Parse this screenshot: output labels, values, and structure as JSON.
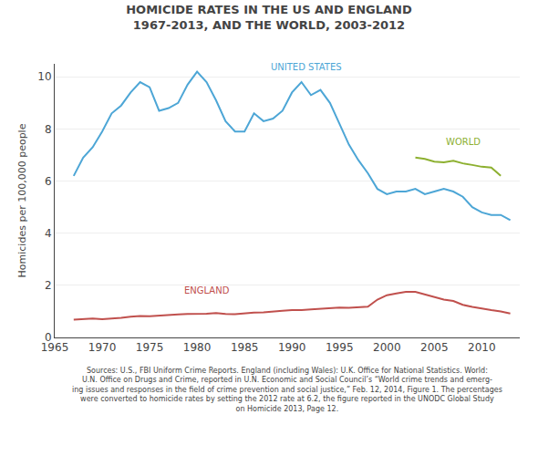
{
  "chart_data": {
    "type": "line",
    "title": "HOMICIDE RATES IN THE US AND ENGLAND",
    "subtitle": "1967-2013, AND THE WORLD, 2003-2012",
    "ylabel": "Homicides per 100,000 people",
    "footnote": "Sources: U.S., FBI Uniform Crime Reports. England (including Wales): U.K. Office for National Statistics. World:\nU.N. Office on Drugs and Crime, reported in U.N. Economic and Social Council’s “World crime trends and emerg-\ning issues and responses in the field of crime prevention and social justice,” Feb. 12, 2014, Figure 1. The percentages\nwere converted to homicide rates by setting the 2012 rate at 6.2, the figure reported in the UNODC Global Study\non Homicide 2013, Page 12.",
    "xlim": [
      1965,
      2014
    ],
    "xticks": [
      1965,
      1970,
      1975,
      1980,
      1985,
      1990,
      1995,
      2000,
      2005,
      2010
    ],
    "ylim": [
      0,
      10.5
    ],
    "yticks": [
      0,
      2,
      4,
      6,
      8,
      10
    ],
    "grid": "y",
    "series": [
      {
        "name": "UNITED STATES",
        "color": "#4da6d6",
        "x": [
          1967,
          1968,
          1969,
          1970,
          1971,
          1972,
          1973,
          1974,
          1975,
          1976,
          1977,
          1978,
          1979,
          1980,
          1981,
          1982,
          1983,
          1984,
          1985,
          1986,
          1987,
          1988,
          1989,
          1990,
          1991,
          1992,
          1993,
          1994,
          1995,
          1996,
          1997,
          1998,
          1999,
          2000,
          2001,
          2002,
          2003,
          2004,
          2005,
          2006,
          2007,
          2008,
          2009,
          2010,
          2011,
          2012,
          2013
        ],
        "values": [
          6.2,
          6.9,
          7.3,
          7.9,
          8.6,
          8.9,
          9.4,
          9.8,
          9.6,
          8.7,
          8.8,
          9.0,
          9.7,
          10.2,
          9.8,
          9.1,
          8.3,
          7.9,
          7.9,
          8.6,
          8.3,
          8.4,
          8.7,
          9.4,
          9.8,
          9.3,
          9.5,
          9.0,
          8.2,
          7.4,
          6.8,
          6.3,
          5.7,
          5.5,
          5.6,
          5.6,
          5.7,
          5.5,
          5.6,
          5.7,
          5.6,
          5.4,
          5.0,
          4.8,
          4.7,
          4.7,
          4.5
        ]
      },
      {
        "name": "ENGLAND",
        "color": "#c0504d",
        "x": [
          1967,
          1968,
          1969,
          1970,
          1971,
          1972,
          1973,
          1974,
          1975,
          1976,
          1977,
          1978,
          1979,
          1980,
          1981,
          1982,
          1983,
          1984,
          1985,
          1986,
          1987,
          1988,
          1989,
          1990,
          1991,
          1992,
          1993,
          1994,
          1995,
          1996,
          1997,
          1998,
          1999,
          2000,
          2001,
          2002,
          2003,
          2004,
          2005,
          2006,
          2007,
          2008,
          2009,
          2010,
          2011,
          2012,
          2013
        ],
        "values": [
          0.68,
          0.7,
          0.73,
          0.7,
          0.72,
          0.75,
          0.8,
          0.82,
          0.81,
          0.84,
          0.87,
          0.88,
          0.9,
          0.9,
          0.91,
          0.94,
          0.9,
          0.89,
          0.93,
          0.95,
          0.96,
          1.0,
          1.02,
          1.05,
          1.05,
          1.08,
          1.1,
          1.12,
          1.15,
          1.14,
          1.15,
          1.18,
          1.45,
          1.62,
          1.69,
          1.75,
          1.75,
          1.65,
          1.57,
          1.45,
          1.4,
          1.25,
          1.17,
          1.1,
          1.05,
          1.0,
          0.92
        ]
      },
      {
        "name": "WORLD",
        "color": "#8db030",
        "x": [
          2003,
          2004,
          2005,
          2006,
          2007,
          2008,
          2009,
          2010,
          2011,
          2012
        ],
        "values": [
          6.9,
          6.85,
          6.75,
          6.72,
          6.78,
          6.68,
          6.62,
          6.55,
          6.52,
          6.2
        ]
      }
    ],
    "annotations": [
      {
        "text": "UNITED STATES",
        "x": 1991.5,
        "y": 10.1,
        "color": "#4da6d6"
      },
      {
        "text": "ENGLAND",
        "x": 1981,
        "y": 1.55,
        "color": "#c0504d"
      },
      {
        "text": "WORLD",
        "x": 2008.0,
        "y": 7.25,
        "color": "#8db030"
      }
    ]
  }
}
